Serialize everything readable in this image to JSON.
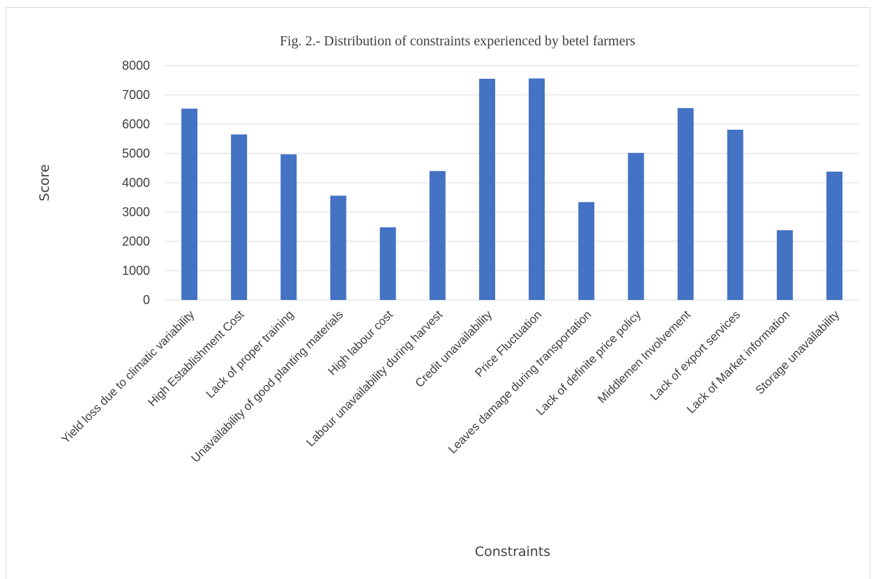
{
  "chart_data": {
    "type": "bar",
    "title": "Fig. 2.- Distribution of constraints experienced by betel farmers",
    "xlabel": "Constraints",
    "ylabel": "Score",
    "ylim": [
      0,
      8000
    ],
    "yticks": [
      0,
      1000,
      2000,
      3000,
      4000,
      5000,
      6000,
      7000,
      8000
    ],
    "grid": true,
    "legend": "none",
    "bar_color": "#4472c4",
    "grid_color": "#d9d9d9",
    "categories": [
      "Yield loss due to climatic variability",
      "High Establishment Cost",
      "Lack of proper training",
      "Unavailability of good planting materials",
      "High labour cost",
      "Labour unavailability during harvest",
      "Credit unavailability",
      "Price Fluctuation",
      "Leaves damage during transportation",
      "Lack of definite price policy",
      "Middlemen Involvement",
      "Lack of export services",
      "Lack of Market information",
      "Storage unavailability"
    ],
    "values": [
      6530,
      5650,
      4970,
      3560,
      2480,
      4400,
      7550,
      7560,
      3340,
      5020,
      6550,
      5810,
      2380,
      4380
    ]
  }
}
